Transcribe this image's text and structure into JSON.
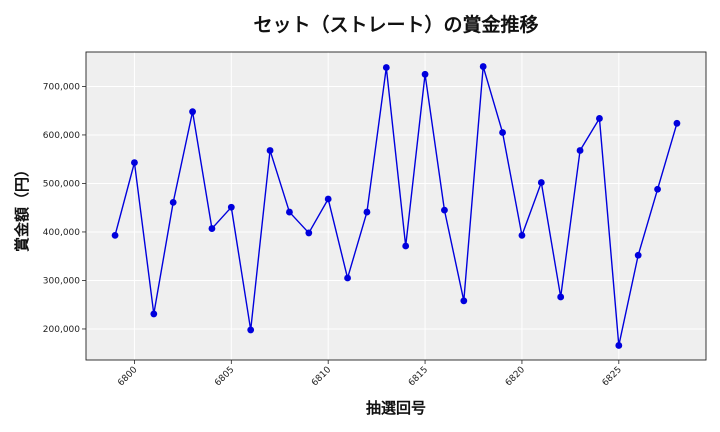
{
  "chart_data": {
    "type": "line",
    "title": "セット（ストレート）の賞金推移",
    "xlabel": "抽選回号",
    "ylabel": "賞金額（円）",
    "x": [
      6799,
      6800,
      6801,
      6802,
      6803,
      6804,
      6805,
      6806,
      6807,
      6808,
      6809,
      6810,
      6811,
      6812,
      6813,
      6814,
      6815,
      6816,
      6817,
      6818,
      6819,
      6820,
      6821,
      6822,
      6823,
      6824,
      6825,
      6826,
      6827,
      6828
    ],
    "series": [
      {
        "values": [
          393000,
          543000,
          231000,
          461000,
          648000,
          407000,
          451000,
          198000,
          568000,
          441000,
          398000,
          468000,
          305000,
          441000,
          739000,
          371000,
          725000,
          445000,
          258000,
          741000,
          605000,
          393000,
          502000,
          266000,
          568000,
          634000,
          166000,
          352000,
          488000,
          624000
        ],
        "color": "#0000dd"
      }
    ],
    "xticks": [
      6800,
      6805,
      6810,
      6815,
      6820,
      6825
    ],
    "xtick_labels": [
      "6800",
      "6805",
      "6810",
      "6815",
      "6820",
      "6825"
    ],
    "yticks": [
      200000,
      300000,
      400000,
      500000,
      600000,
      700000
    ],
    "ytick_labels": [
      "200,000",
      "300,000",
      "400,000",
      "500,000",
      "600,000",
      "700,000"
    ],
    "xlim": [
      6797.5,
      6829.5
    ],
    "ylim": [
      136000,
      771000
    ],
    "grid": true,
    "plot_background": "#efefef",
    "grid_color": "#ffffff"
  }
}
